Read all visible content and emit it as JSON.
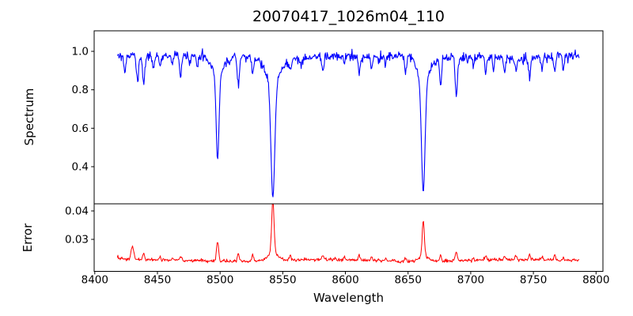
{
  "chart_data": {
    "type": "line",
    "title": "20070417_1026m04_110",
    "xlabel": "Wavelength",
    "grid": false,
    "legend": "none",
    "xlim": [
      8399.5,
      8805.5
    ],
    "x_ticks": [
      8400,
      8450,
      8500,
      8550,
      8600,
      8650,
      8700,
      8750,
      8800
    ],
    "x_tick_labels": [
      "8400",
      "8450",
      "8500",
      "8550",
      "8600",
      "8650",
      "8700",
      "8750",
      "8800"
    ],
    "sampling": {
      "start": 8418,
      "end": 8787,
      "step": 0.45,
      "seed": 12345
    },
    "panels": [
      {
        "name": "spectrum",
        "ylabel": "Spectrum",
        "color": "#0000ff",
        "ylim": [
          0.2068,
          1.1068
        ],
        "y_ticks": [
          0.4,
          0.6,
          0.8,
          1.0
        ],
        "y_tick_labels": [
          "0.4",
          "0.6",
          "0.8",
          "1.0"
        ],
        "continuum": {
          "base": 0.972,
          "waves": [
            [
              0.006,
              185,
              0.5
            ],
            [
              0.0045,
              60,
              2.1
            ]
          ]
        },
        "noise_sigma": 0.012,
        "absorption_lines": [
          [
            8424,
            0.09,
            0.8
          ],
          [
            8434,
            0.12,
            0.9
          ],
          [
            8439,
            0.14,
            0.9
          ],
          [
            8447,
            0.07,
            0.7
          ],
          [
            8452,
            0.06,
            0.7
          ],
          [
            8462,
            0.05,
            0.7
          ],
          [
            8468.5,
            0.11,
            0.9
          ],
          [
            8476,
            0.05,
            0.7
          ],
          [
            8482,
            0.06,
            0.7
          ],
          [
            8498.02,
            0.43,
            1.1
          ],
          [
            8498.02,
            0.1,
            4.0
          ],
          [
            8514.5,
            0.14,
            0.9
          ],
          [
            8526,
            0.07,
            0.8
          ],
          [
            8542.09,
            0.6,
            1.5
          ],
          [
            8542.09,
            0.13,
            6.0
          ],
          [
            8556,
            0.07,
            0.7
          ],
          [
            8565,
            0.05,
            0.6
          ],
          [
            8582,
            0.08,
            0.8
          ],
          [
            8599,
            0.05,
            0.6
          ],
          [
            8611,
            0.09,
            0.8
          ],
          [
            8621,
            0.06,
            0.7
          ],
          [
            8632,
            0.05,
            0.6
          ],
          [
            8648,
            0.09,
            0.8
          ],
          [
            8662.14,
            0.58,
            1.4
          ],
          [
            8662.14,
            0.13,
            5.0
          ],
          [
            8676,
            0.15,
            0.8
          ],
          [
            8688.5,
            0.2,
            0.9
          ],
          [
            8702,
            0.05,
            0.6
          ],
          [
            8712,
            0.09,
            0.8
          ],
          [
            8718,
            0.07,
            0.6
          ],
          [
            8727,
            0.08,
            0.8
          ],
          [
            8736,
            0.07,
            0.7
          ],
          [
            8747,
            0.1,
            0.8
          ],
          [
            8757,
            0.06,
            0.7
          ],
          [
            8767,
            0.08,
            0.7
          ],
          [
            8774,
            0.07,
            0.7
          ]
        ],
        "notable_lines_note": "Ca II infrared triplet at 8498, 8542, 8662 reaching depths ~0.45, ~0.25, ~0.26"
      },
      {
        "name": "error",
        "ylabel": "Error",
        "color": "#ff0000",
        "ylim": [
          0.01875,
          0.0425
        ],
        "y_ticks": [
          0.03,
          0.04
        ],
        "y_tick_labels": [
          "0.03",
          "0.04"
        ],
        "baseline": {
          "base": 0.0226,
          "waves": [
            [
              0.0003,
              150,
              1.0
            ]
          ]
        },
        "noise_sigma": 0.00028,
        "peaks": [
          [
            8430,
            0.0045,
            1.0
          ],
          [
            8439,
            0.002,
            0.8
          ],
          [
            8452,
            0.0013,
            0.5
          ],
          [
            8462,
            0.001,
            0.5
          ],
          [
            8468.5,
            0.0015,
            0.8
          ],
          [
            8498.02,
            0.007,
            0.8
          ],
          [
            8514.5,
            0.0028,
            0.7
          ],
          [
            8526,
            0.002,
            0.7
          ],
          [
            8542.09,
            0.0185,
            0.95
          ],
          [
            8542.09,
            0.0028,
            4.0
          ],
          [
            8556,
            0.002,
            0.7
          ],
          [
            8582,
            0.0015,
            0.7
          ],
          [
            8599,
            0.0012,
            0.5
          ],
          [
            8611,
            0.0015,
            0.7
          ],
          [
            8621,
            0.0012,
            0.5
          ],
          [
            8632,
            0.001,
            0.5
          ],
          [
            8648,
            0.0012,
            0.7
          ],
          [
            8662.14,
            0.0128,
            0.85
          ],
          [
            8662.14,
            0.0018,
            3.5
          ],
          [
            8676,
            0.002,
            0.6
          ],
          [
            8688.5,
            0.0028,
            0.8
          ],
          [
            8702,
            0.001,
            0.5
          ],
          [
            8712,
            0.0012,
            0.7
          ],
          [
            8727,
            0.0012,
            0.7
          ],
          [
            8736,
            0.0015,
            0.7
          ],
          [
            8747,
            0.002,
            0.7
          ],
          [
            8757,
            0.0012,
            0.5
          ],
          [
            8767,
            0.0018,
            0.7
          ],
          [
            8774,
            0.0012,
            0.5
          ]
        ]
      }
    ]
  }
}
